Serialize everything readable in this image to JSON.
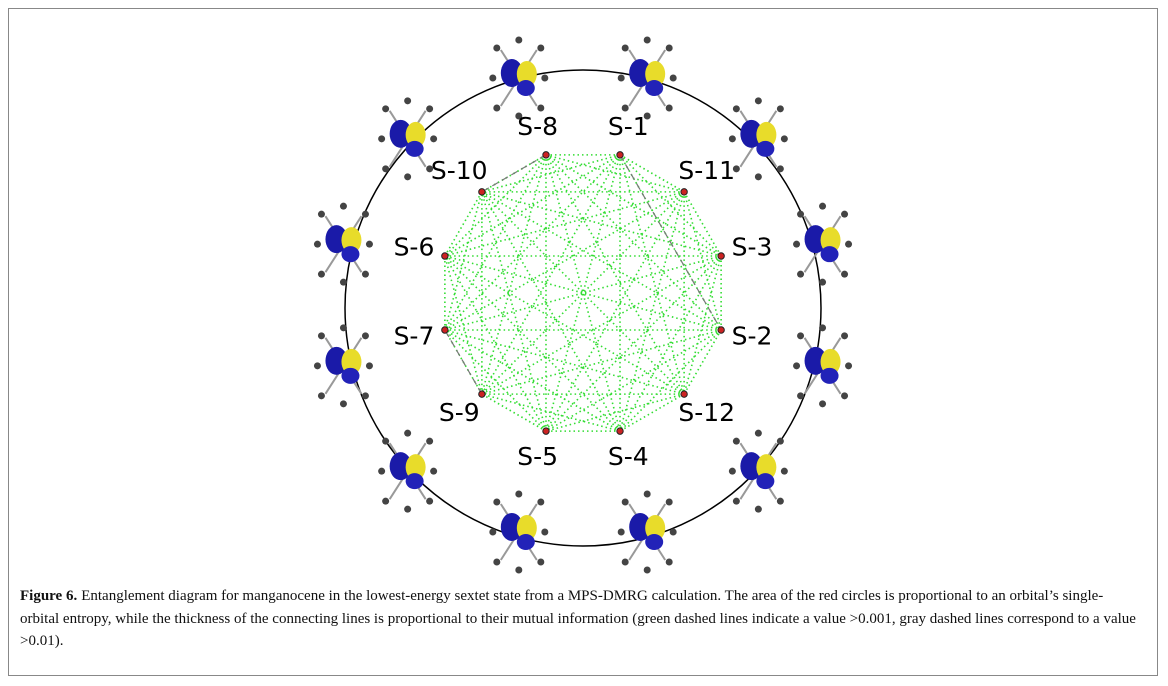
{
  "figure": {
    "nodes": [
      {
        "label": "S-8"
      },
      {
        "label": "S-1"
      },
      {
        "label": "S-11"
      },
      {
        "label": "S-3"
      },
      {
        "label": "S-2"
      },
      {
        "label": "S-12"
      },
      {
        "label": "S-4"
      },
      {
        "label": "S-5"
      },
      {
        "label": "S-9"
      },
      {
        "label": "S-7"
      },
      {
        "label": "S-6"
      },
      {
        "label": "S-10"
      }
    ],
    "caption": {
      "label": "Figure 6.",
      "text": "Entanglement diagram for manganocene in the lowest-energy sextet state from a MPS-DMRG calculation. The area of the red circles is proportional to an orbital’s single-orbital entropy, while the thickness of the connecting lines is proportional to their mutual information (green dashed lines indicate a value >0.001, gray dashed lines correspond to a value >0.01)."
    }
  }
}
